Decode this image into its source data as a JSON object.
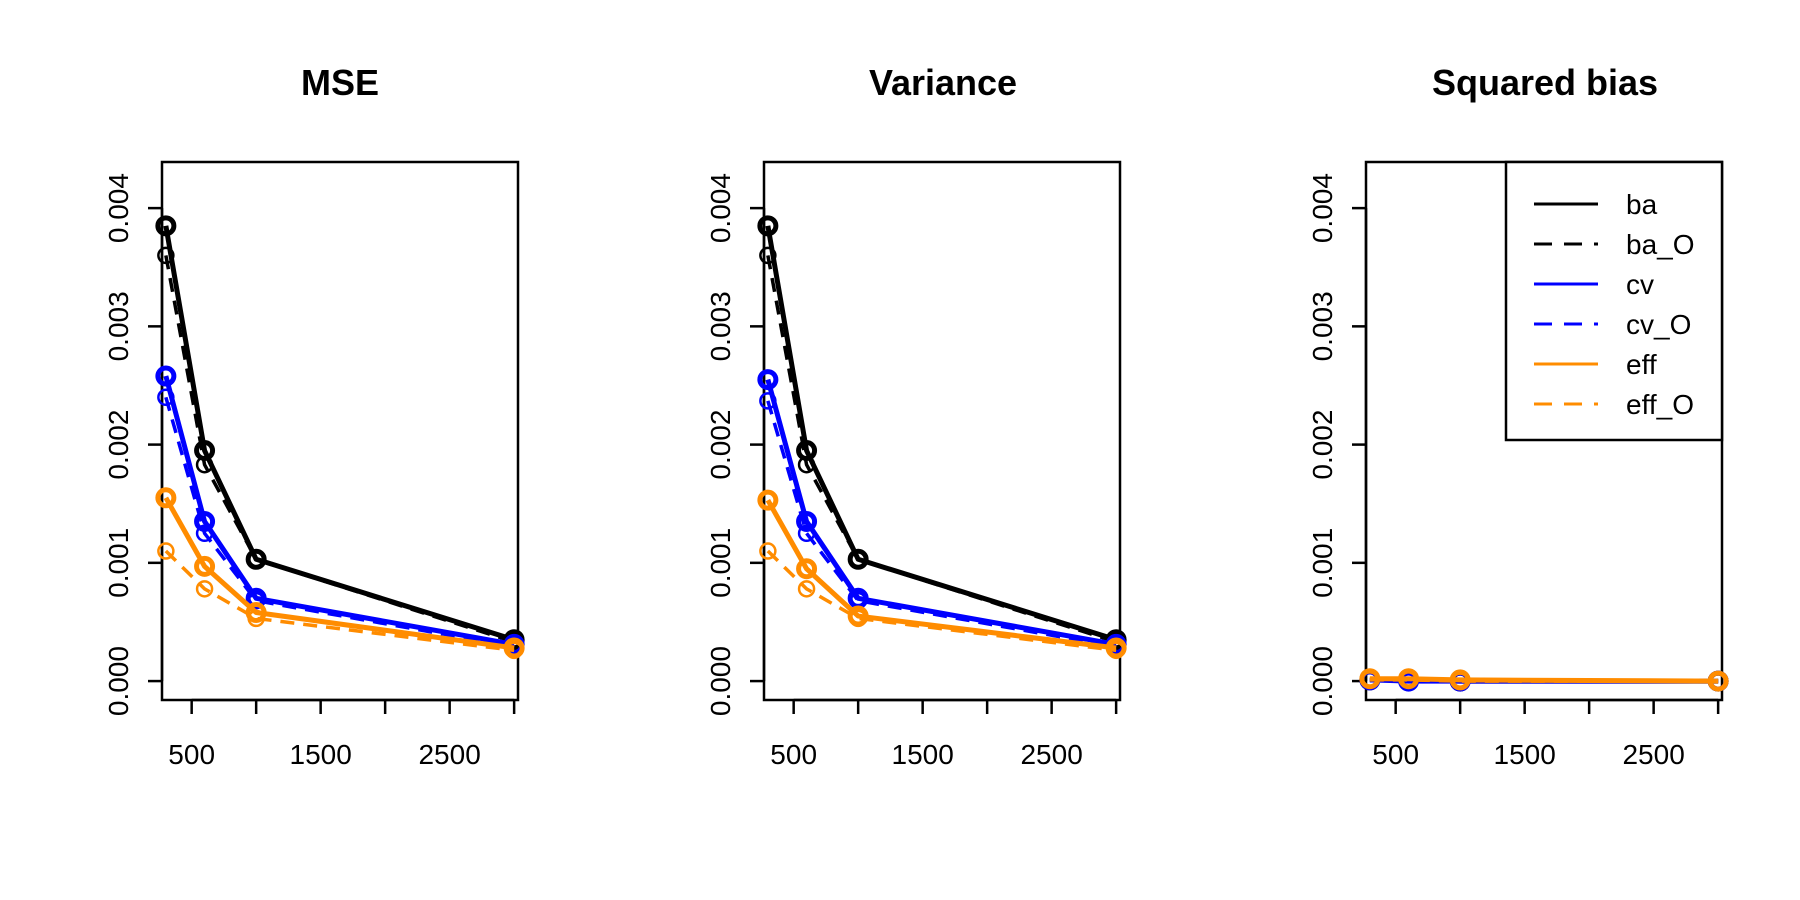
{
  "chart_data": [
    {
      "type": "line",
      "title": "MSE",
      "xlabel": "",
      "ylabel": "",
      "xlim": [
        270,
        3030
      ],
      "ylim": [
        -0.00016,
        0.00439
      ],
      "x_ticks": [
        500,
        1000,
        1500,
        2000,
        2500,
        3000
      ],
      "x_tick_labels": [
        "500",
        "",
        "1500",
        "",
        "2500",
        ""
      ],
      "y_ticks": [
        0.0,
        0.001,
        0.002,
        0.003,
        0.004
      ],
      "y_tick_labels": [
        "0.000",
        "0.001",
        "0.002",
        "0.003",
        "0.004"
      ],
      "x": [
        300,
        600,
        1000,
        3000
      ],
      "series": [
        {
          "name": "ba",
          "values": [
            0.00385,
            0.00195,
            0.00103,
            0.00035
          ]
        },
        {
          "name": "ba_O",
          "values": [
            0.0036,
            0.00183,
            0.00103,
            0.00033
          ]
        },
        {
          "name": "cv",
          "values": [
            0.00258,
            0.00135,
            0.0007,
            0.00031
          ]
        },
        {
          "name": "cv_O",
          "values": [
            0.0024,
            0.00125,
            0.00068,
            0.00029
          ]
        },
        {
          "name": "eff",
          "values": [
            0.00155,
            0.00097,
            0.00058,
            0.00028
          ]
        },
        {
          "name": "eff_O",
          "values": [
            0.0011,
            0.00078,
            0.00053,
            0.00026
          ]
        }
      ],
      "grid": false,
      "legend": null
    },
    {
      "type": "line",
      "title": "Variance",
      "xlabel": "",
      "ylabel": "",
      "xlim": [
        270,
        3030
      ],
      "ylim": [
        -0.00016,
        0.00439
      ],
      "x_ticks": [
        500,
        1000,
        1500,
        2000,
        2500,
        3000
      ],
      "x_tick_labels": [
        "500",
        "",
        "1500",
        "",
        "2500",
        ""
      ],
      "y_ticks": [
        0.0,
        0.001,
        0.002,
        0.003,
        0.004
      ],
      "y_tick_labels": [
        "0.000",
        "0.001",
        "0.002",
        "0.003",
        "0.004"
      ],
      "x": [
        300,
        600,
        1000,
        3000
      ],
      "series": [
        {
          "name": "ba",
          "values": [
            0.00385,
            0.00195,
            0.00103,
            0.00035
          ]
        },
        {
          "name": "ba_O",
          "values": [
            0.0036,
            0.00183,
            0.00103,
            0.00033
          ]
        },
        {
          "name": "cv",
          "values": [
            0.00255,
            0.00135,
            0.0007,
            0.00031
          ]
        },
        {
          "name": "cv_O",
          "values": [
            0.00237,
            0.00125,
            0.00068,
            0.00029
          ]
        },
        {
          "name": "eff",
          "values": [
            0.00153,
            0.00095,
            0.00055,
            0.00028
          ]
        },
        {
          "name": "eff_O",
          "values": [
            0.0011,
            0.00078,
            0.00053,
            0.00026
          ]
        }
      ],
      "grid": false,
      "legend": null
    },
    {
      "type": "line",
      "title": "Squared bias",
      "xlabel": "",
      "ylabel": "",
      "xlim": [
        270,
        3030
      ],
      "ylim": [
        -0.00016,
        0.00439
      ],
      "x_ticks": [
        500,
        1000,
        1500,
        2000,
        2500,
        3000
      ],
      "x_tick_labels": [
        "500",
        "",
        "1500",
        "",
        "2500",
        ""
      ],
      "y_ticks": [
        0.0,
        0.001,
        0.002,
        0.003,
        0.004
      ],
      "y_tick_labels": [
        "0.000",
        "0.001",
        "0.002",
        "0.003",
        "0.004"
      ],
      "x": [
        300,
        600,
        1000,
        3000
      ],
      "series": [
        {
          "name": "ba",
          "values": [
            1e-05,
            1e-05,
            0.0,
            0.0
          ]
        },
        {
          "name": "ba_O",
          "values": [
            1e-05,
            1e-05,
            0.0,
            0.0
          ]
        },
        {
          "name": "cv",
          "values": [
            1e-05,
            0.0,
            0.0,
            0.0
          ]
        },
        {
          "name": "cv_O",
          "values": [
            1e-05,
            0.0,
            0.0,
            0.0
          ]
        },
        {
          "name": "eff",
          "values": [
            2e-05,
            2e-05,
            1e-05,
            0.0
          ]
        },
        {
          "name": "eff_O",
          "values": [
            1e-05,
            1e-05,
            0.0,
            0.0
          ]
        }
      ],
      "grid": false,
      "legend": "top-right"
    }
  ],
  "legend": {
    "entries": [
      {
        "label": "ba",
        "color": "#000000",
        "dash": false
      },
      {
        "label": "ba_O",
        "color": "#000000",
        "dash": true
      },
      {
        "label": "cv",
        "color": "#0000ff",
        "dash": false
      },
      {
        "label": "cv_O",
        "color": "#0000ff",
        "dash": true
      },
      {
        "label": "eff",
        "color": "#ff8c00",
        "dash": false
      },
      {
        "label": "eff_O",
        "color": "#ff8c00",
        "dash": true
      }
    ]
  },
  "colors": {
    "ba": "#000000",
    "cv": "#0000ff",
    "eff": "#ff8c00"
  }
}
